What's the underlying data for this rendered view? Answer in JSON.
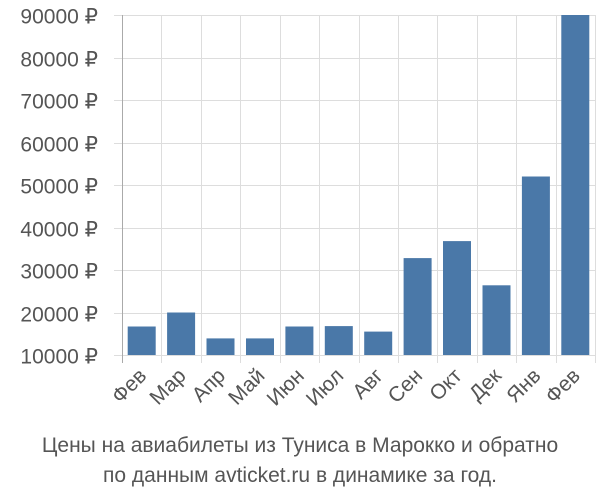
{
  "chart_data": {
    "type": "bar",
    "title": "",
    "xlabel": "",
    "ylabel": "",
    "categories": [
      "Фев",
      "Мар",
      "Апр",
      "Май",
      "Июн",
      "Июл",
      "Авг",
      "Сен",
      "Окт",
      "Дек",
      "Янв",
      "Фев"
    ],
    "values": [
      16700,
      20000,
      13900,
      13900,
      16700,
      16800,
      15500,
      32800,
      36800,
      26400,
      52000,
      90000
    ],
    "ylim": [
      10000,
      90000
    ],
    "yticks": [
      10000,
      20000,
      30000,
      40000,
      50000,
      60000,
      70000,
      80000,
      90000
    ],
    "ytick_labels": [
      "10000 ₽",
      "20000 ₽",
      "30000 ₽",
      "40000 ₽",
      "50000 ₽",
      "60000 ₽",
      "70000 ₽",
      "80000 ₽",
      "90000 ₽"
    ],
    "bar_color": "#4a78a8",
    "grid": true,
    "legend": "none"
  },
  "caption": {
    "line1": "Цены на авиабилеты из Туниса в Марокко и обратно",
    "line2": "по данным avticket.ru в динамике за год."
  }
}
